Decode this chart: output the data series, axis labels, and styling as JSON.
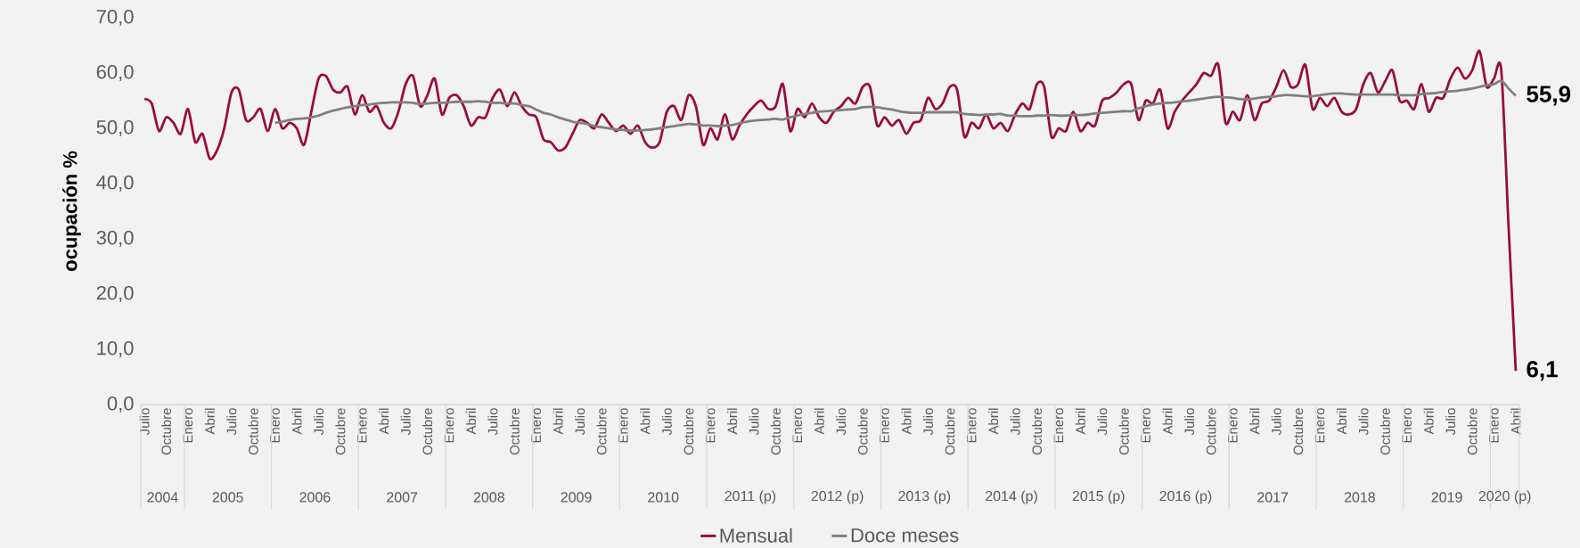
{
  "chart_data": {
    "type": "line",
    "ylabel": "ocupación %",
    "x": [
      "2004-07",
      "2004-08",
      "2004-09",
      "2004-10",
      "2004-11",
      "2004-12",
      "2005-01",
      "2005-02",
      "2005-03",
      "2005-04",
      "2005-05",
      "2005-06",
      "2005-07",
      "2005-08",
      "2005-09",
      "2005-10",
      "2005-11",
      "2005-12",
      "2006-01",
      "2006-02",
      "2006-03",
      "2006-04",
      "2006-05",
      "2006-06",
      "2006-07",
      "2006-08",
      "2006-09",
      "2006-10",
      "2006-11",
      "2006-12",
      "2007-01",
      "2007-02",
      "2007-03",
      "2007-04",
      "2007-05",
      "2007-06",
      "2007-07",
      "2007-08",
      "2007-09",
      "2007-10",
      "2007-11",
      "2007-12",
      "2008-01",
      "2008-02",
      "2008-03",
      "2008-04",
      "2008-05",
      "2008-06",
      "2008-07",
      "2008-08",
      "2008-09",
      "2008-10",
      "2008-11",
      "2008-12",
      "2009-01",
      "2009-02",
      "2009-03",
      "2009-04",
      "2009-05",
      "2009-06",
      "2009-07",
      "2009-08",
      "2009-09",
      "2009-10",
      "2009-11",
      "2009-12",
      "2010-01",
      "2010-02",
      "2010-03",
      "2010-04",
      "2010-05",
      "2010-06",
      "2010-07",
      "2010-08",
      "2010-09",
      "2010-10",
      "2010-11",
      "2010-12",
      "2011-01",
      "2011-02",
      "2011-03",
      "2011-04",
      "2011-05",
      "2011-06",
      "2011-07",
      "2011-08",
      "2011-09",
      "2011-10",
      "2011-11",
      "2011-12",
      "2012-01",
      "2012-02",
      "2012-03",
      "2012-04",
      "2012-05",
      "2012-06",
      "2012-07",
      "2012-08",
      "2012-09",
      "2012-10",
      "2012-11",
      "2012-12",
      "2013-01",
      "2013-02",
      "2013-03",
      "2013-04",
      "2013-05",
      "2013-06",
      "2013-07",
      "2013-08",
      "2013-09",
      "2013-10",
      "2013-11",
      "2013-12",
      "2014-01",
      "2014-02",
      "2014-03",
      "2014-04",
      "2014-05",
      "2014-06",
      "2014-07",
      "2014-08",
      "2014-09",
      "2014-10",
      "2014-11",
      "2014-12",
      "2015-01",
      "2015-02",
      "2015-03",
      "2015-04",
      "2015-05",
      "2015-06",
      "2015-07",
      "2015-08",
      "2015-09",
      "2015-10",
      "2015-11",
      "2015-12",
      "2016-01",
      "2016-02",
      "2016-03",
      "2016-04",
      "2016-05",
      "2016-06",
      "2016-07",
      "2016-08",
      "2016-09",
      "2016-10",
      "2016-11",
      "2016-12",
      "2017-01",
      "2017-02",
      "2017-03",
      "2017-04",
      "2017-05",
      "2017-06",
      "2017-07",
      "2017-08",
      "2017-09",
      "2017-10",
      "2017-11",
      "2017-12",
      "2018-01",
      "2018-02",
      "2018-03",
      "2018-04",
      "2018-05",
      "2018-06",
      "2018-07",
      "2018-08",
      "2018-09",
      "2018-10",
      "2018-11",
      "2018-12",
      "2019-01",
      "2019-02",
      "2019-03",
      "2019-04",
      "2019-05",
      "2019-06",
      "2019-07",
      "2019-08",
      "2019-09",
      "2019-10",
      "2019-11",
      "2019-12",
      "2020-01",
      "2020-02",
      "2020-03",
      "2020-04"
    ],
    "series": [
      {
        "name": "Mensual",
        "color": "#990d3b",
        "values": [
          55.3,
          54.5,
          49.5,
          52,
          51,
          49,
          53.5,
          47.5,
          49,
          44.5,
          46,
          50,
          56.5,
          57,
          51.5,
          52,
          53.5,
          49.5,
          53.5,
          50,
          51,
          50,
          47,
          53,
          59,
          59.5,
          57,
          56.5,
          57.5,
          52.5,
          56,
          53,
          54,
          51,
          50,
          53,
          58,
          59.5,
          54,
          56,
          59,
          52.5,
          55.5,
          56,
          54,
          50.5,
          52,
          52,
          55.5,
          57,
          54,
          56.5,
          54,
          52.5,
          52,
          48,
          47.5,
          46,
          46.5,
          49,
          51.5,
          51,
          50,
          52.5,
          51,
          49.5,
          50.5,
          49,
          50.5,
          47.5,
          46.5,
          47.5,
          53,
          54,
          51.5,
          56,
          54,
          47,
          50,
          48,
          52.5,
          48,
          50.5,
          52.5,
          54,
          55,
          53.5,
          54,
          58,
          49.5,
          53.5,
          52,
          54.5,
          52,
          51,
          53,
          54,
          55.5,
          54.5,
          57.5,
          57.5,
          50.5,
          52,
          50.5,
          51.5,
          49,
          51,
          51.5,
          55.5,
          53.5,
          54.5,
          57.5,
          57,
          48.5,
          51,
          50,
          52.5,
          50,
          51,
          49.5,
          52.5,
          54.5,
          53.5,
          58,
          57.5,
          48.5,
          50,
          49.5,
          53,
          49.5,
          51,
          50.5,
          55,
          55.5,
          56.5,
          58,
          58,
          51.5,
          55,
          54.5,
          57,
          50,
          53,
          55,
          56.5,
          58,
          60,
          59.5,
          61.5,
          51,
          53,
          51.5,
          56,
          51.5,
          54.5,
          55,
          57.5,
          60.5,
          57.5,
          58,
          61.5,
          53.5,
          55.5,
          54,
          55.5,
          53,
          52.5,
          53.5,
          58,
          60,
          56.5,
          58.5,
          60.5,
          55,
          55,
          53.5,
          58,
          53,
          55.5,
          55.5,
          59,
          61,
          59,
          60.5,
          64,
          57.5,
          59,
          60.5,
          32.4,
          6.1
        ]
      },
      {
        "name": "Doce meses",
        "color": "#808080",
        "values": [
          null,
          null,
          null,
          null,
          null,
          null,
          null,
          null,
          null,
          null,
          null,
          null,
          null,
          null,
          null,
          null,
          null,
          null,
          51,
          51.2,
          51.5,
          51.7,
          51.8,
          52,
          52.3,
          52.8,
          53.2,
          53.5,
          53.8,
          54,
          54.2,
          54.3,
          54.5,
          54.6,
          54.7,
          54.7,
          54.7,
          54.6,
          54.4,
          54.5,
          54.6,
          54.6,
          54.7,
          54.8,
          54.8,
          54.8,
          54.9,
          54.8,
          54.6,
          54.6,
          54.5,
          54.5,
          54.2,
          54,
          53.4,
          52.8,
          52.5,
          52,
          51.6,
          51.2,
          51,
          50.8,
          50.4,
          50.2,
          50,
          49.8,
          49.7,
          49.6,
          49.6,
          49.7,
          49.8,
          50,
          50.2,
          50.4,
          50.6,
          50.8,
          50.7,
          50.5,
          50.5,
          50.4,
          50.5,
          50.6,
          50.9,
          51.2,
          51.4,
          51.5,
          51.6,
          51.7,
          51.6,
          52,
          52.3,
          52.6,
          52.8,
          53,
          53.1,
          53.2,
          53.3,
          53.4,
          53.5,
          53.8,
          53.9,
          53.8,
          53.6,
          53.4,
          53.1,
          52.9,
          52.8,
          52.8,
          52.9,
          52.9,
          52.9,
          52.9,
          52.9,
          52.6,
          52.5,
          52.4,
          52.5,
          52.5,
          52.6,
          52.3,
          52.3,
          52.2,
          52.2,
          52.3,
          52.3,
          52.4,
          52.3,
          52.3,
          52.4,
          52.4,
          52.5,
          52.7,
          52.8,
          52.9,
          53,
          53.1,
          53.1,
          53.6,
          54,
          54.3,
          54.5,
          54.6,
          54.7,
          54.9,
          55,
          55.2,
          55.4,
          55.6,
          55.7,
          55.6,
          55.5,
          55.3,
          55.2,
          55.4,
          55.6,
          55.7,
          55.8,
          56,
          56,
          55.9,
          55.8,
          55.8,
          56,
          56.2,
          56.3,
          56.3,
          56.2,
          56.1,
          56.1,
          56.1,
          56.1,
          56.1,
          56.1,
          56,
          56,
          56,
          56.2,
          56.3,
          56.4,
          56.6,
          56.7,
          56.8,
          57,
          57.2,
          57.5,
          57.8,
          58,
          58.6,
          57.2,
          55.9
        ]
      }
    ],
    "xlim": [
      "2004-06-16",
      "2020-04-16"
    ],
    "xticks": [
      {
        "value": "2004-07",
        "label": "Julio"
      },
      {
        "value": "2004-10",
        "label": "Octubre"
      },
      {
        "value": "2005-01",
        "label": "Enero"
      },
      {
        "value": "2005-04",
        "label": "Abril"
      },
      {
        "value": "2005-07",
        "label": "Julio"
      },
      {
        "value": "2005-10",
        "label": "Octubre"
      },
      {
        "value": "2006-01",
        "label": "Enero"
      },
      {
        "value": "2006-04",
        "label": "Abril"
      },
      {
        "value": "2006-07",
        "label": "Julio"
      },
      {
        "value": "2006-10",
        "label": "Octubre"
      },
      {
        "value": "2007-01",
        "label": "Enero"
      },
      {
        "value": "2007-04",
        "label": "Abril"
      },
      {
        "value": "2007-07",
        "label": "Julio"
      },
      {
        "value": "2007-10",
        "label": "Octubre"
      },
      {
        "value": "2008-01",
        "label": "Enero"
      },
      {
        "value": "2008-04",
        "label": "Abril"
      },
      {
        "value": "2008-07",
        "label": "Julio"
      },
      {
        "value": "2008-10",
        "label": "Octubre"
      },
      {
        "value": "2009-01",
        "label": "Enero"
      },
      {
        "value": "2009-04",
        "label": "Abril"
      },
      {
        "value": "2009-07",
        "label": "Julio"
      },
      {
        "value": "2009-10",
        "label": "Octubre"
      },
      {
        "value": "2010-01",
        "label": "Enero"
      },
      {
        "value": "2010-04",
        "label": "Abril"
      },
      {
        "value": "2010-07",
        "label": "Julio"
      },
      {
        "value": "2010-10",
        "label": "Octubre"
      },
      {
        "value": "2011-01",
        "label": "Enero"
      },
      {
        "value": "2011-04",
        "label": "Abril"
      },
      {
        "value": "2011-07",
        "label": "Julio"
      },
      {
        "value": "2011-10",
        "label": "Octubre"
      },
      {
        "value": "2012-01",
        "label": "Enero"
      },
      {
        "value": "2012-04",
        "label": "Abril"
      },
      {
        "value": "2012-07",
        "label": "Julio"
      },
      {
        "value": "2012-10",
        "label": "Octubre"
      },
      {
        "value": "2013-01",
        "label": "Enero"
      },
      {
        "value": "2013-04",
        "label": "Abril"
      },
      {
        "value": "2013-07",
        "label": "Julio"
      },
      {
        "value": "2013-10",
        "label": "Octubre"
      },
      {
        "value": "2014-01",
        "label": "Enero"
      },
      {
        "value": "2014-04",
        "label": "Abril"
      },
      {
        "value": "2014-07",
        "label": "Julio"
      },
      {
        "value": "2014-10",
        "label": "Octubre"
      },
      {
        "value": "2015-01",
        "label": "Enero"
      },
      {
        "value": "2015-04",
        "label": "Abril"
      },
      {
        "value": "2015-07",
        "label": "Julio"
      },
      {
        "value": "2015-10",
        "label": "Octubre"
      },
      {
        "value": "2016-01",
        "label": "Enero"
      },
      {
        "value": "2016-04",
        "label": "Abril"
      },
      {
        "value": "2016-07",
        "label": "Julio"
      },
      {
        "value": "2016-10",
        "label": "Octubre"
      },
      {
        "value": "2017-01",
        "label": "Enero"
      },
      {
        "value": "2017-04",
        "label": "Abril"
      },
      {
        "value": "2017-07",
        "label": "Julio"
      },
      {
        "value": "2017-10",
        "label": "Octubre"
      },
      {
        "value": "2018-01",
        "label": "Enero"
      },
      {
        "value": "2018-04",
        "label": "Abril"
      },
      {
        "value": "2018-07",
        "label": "Julio"
      },
      {
        "value": "2018-10",
        "label": "Octubre"
      },
      {
        "value": "2019-01",
        "label": "Enero"
      },
      {
        "value": "2019-04",
        "label": "Abril"
      },
      {
        "value": "2019-07",
        "label": "Julio"
      },
      {
        "value": "2019-10",
        "label": "Octubre"
      },
      {
        "value": "2020-01",
        "label": "Enero"
      },
      {
        "value": "2020-04",
        "label": "Abril"
      }
    ],
    "ylim": [
      0,
      70
    ],
    "yticks": [
      {
        "value": 0,
        "label": "0,0"
      },
      {
        "value": 10,
        "label": "10,0"
      },
      {
        "value": 20,
        "label": "20,0"
      },
      {
        "value": 30,
        "label": "30,0"
      },
      {
        "value": 40,
        "label": "40,0"
      },
      {
        "value": 50,
        "label": "50,0"
      },
      {
        "value": 60,
        "label": "60,0"
      },
      {
        "value": 70,
        "label": "70,0"
      }
    ],
    "annotations": [
      {
        "text": "55,9",
        "x": "2020-04",
        "y": 55.9
      },
      {
        "text": "6,1",
        "x": "2020-04",
        "y": 6.1
      },
      "2004",
      "2005",
      "2006",
      "2007",
      "2008",
      "2009",
      "2010",
      "2011 (p)",
      "2012 (p)",
      "2013 (p)",
      "2014 (p)",
      "2015 (p)",
      "2016 (p)",
      "2017",
      "2018",
      "2019",
      "2020 (p)"
    ],
    "legend": "bottom",
    "grid": false,
    "marker": "none"
  }
}
